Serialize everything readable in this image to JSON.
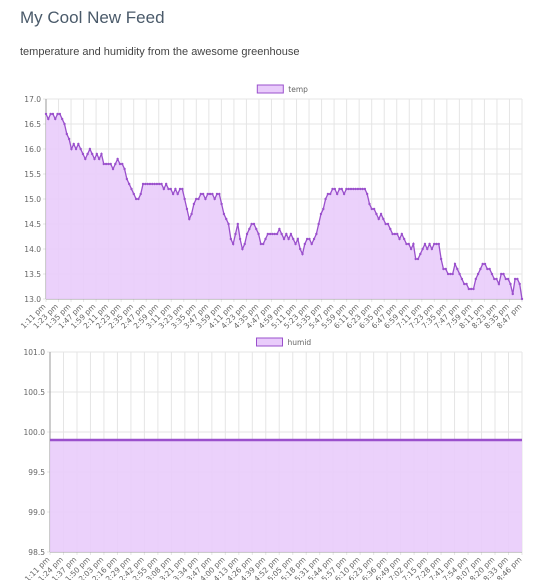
{
  "page": {
    "title": "My Cool New Feed",
    "description": "temperature and humidity from the awesome greenhouse"
  },
  "colors": {
    "line": "#9a50cc",
    "fill": "#e9ccfb",
    "grid": "#e5e5e5",
    "axis": "#999999"
  },
  "chart_data": [
    {
      "type": "area",
      "series": [
        {
          "name": "temp",
          "values": [
            16.7,
            16.6,
            16.7,
            16.7,
            16.6,
            16.7,
            16.7,
            16.6,
            16.5,
            16.3,
            16.2,
            16.0,
            16.1,
            16.0,
            16.1,
            16.0,
            15.9,
            15.8,
            15.9,
            16.0,
            15.9,
            15.8,
            15.9,
            15.8,
            15.9,
            15.7,
            15.7,
            15.7,
            15.7,
            15.6,
            15.7,
            15.8,
            15.7,
            15.7,
            15.6,
            15.4,
            15.3,
            15.2,
            15.1,
            15.0,
            15.0,
            15.1,
            15.3,
            15.3,
            15.3,
            15.3,
            15.3,
            15.3,
            15.3,
            15.3,
            15.3,
            15.2,
            15.3,
            15.2,
            15.2,
            15.1,
            15.2,
            15.1,
            15.2,
            15.2,
            15.0,
            14.8,
            14.6,
            14.7,
            14.9,
            15.0,
            15.0,
            15.1,
            15.1,
            15.0,
            15.1,
            15.1,
            15.1,
            15.0,
            15.1,
            15.1,
            14.9,
            14.7,
            14.6,
            14.5,
            14.2,
            14.1,
            14.3,
            14.5,
            14.2,
            14.0,
            14.1,
            14.3,
            14.4,
            14.5,
            14.5,
            14.4,
            14.3,
            14.1,
            14.1,
            14.2,
            14.3,
            14.3,
            14.3,
            14.3,
            14.3,
            14.4,
            14.3,
            14.2,
            14.3,
            14.2,
            14.3,
            14.2,
            14.1,
            14.2,
            14.0,
            13.9,
            14.1,
            14.2,
            14.2,
            14.1,
            14.2,
            14.3,
            14.5,
            14.7,
            14.8,
            15.0,
            15.1,
            15.1,
            15.2,
            15.2,
            15.1,
            15.2,
            15.2,
            15.1,
            15.2,
            15.2,
            15.2,
            15.2,
            15.2,
            15.2,
            15.2,
            15.2,
            15.2,
            15.1,
            14.9,
            14.8,
            14.8,
            14.7,
            14.6,
            14.7,
            14.6,
            14.5,
            14.5,
            14.4,
            14.3,
            14.3,
            14.3,
            14.2,
            14.3,
            14.2,
            14.1,
            14.1,
            14.0,
            14.1,
            13.8,
            13.8,
            13.9,
            14.0,
            14.1,
            14.0,
            14.1,
            14.0,
            14.1,
            14.1,
            14.1,
            13.8,
            13.6,
            13.6,
            13.5,
            13.5,
            13.5,
            13.7,
            13.6,
            13.5,
            13.4,
            13.3,
            13.3,
            13.2,
            13.2,
            13.2,
            13.4,
            13.5,
            13.6,
            13.7,
            13.7,
            13.6,
            13.6,
            13.5,
            13.4,
            13.4,
            13.3,
            13.5,
            13.5,
            13.4,
            13.4,
            13.3,
            13.1,
            13.4,
            13.4,
            13.3,
            13.0
          ]
        }
      ],
      "x_labels": [
        "1:11 pm",
        "1:23 pm",
        "1:35 pm",
        "1:47 pm",
        "1:59 pm",
        "2:11 pm",
        "2:23 pm",
        "2:35 pm",
        "2:47 pm",
        "2:59 pm",
        "3:11 pm",
        "3:23 pm",
        "3:35 pm",
        "3:47 pm",
        "3:59 pm",
        "4:11 pm",
        "4:23 pm",
        "4:35 pm",
        "4:47 pm",
        "4:59 pm",
        "5:11 pm",
        "5:23 pm",
        "5:35 pm",
        "5:47 pm",
        "5:59 pm",
        "6:11 pm",
        "6:23 pm",
        "6:35 pm",
        "6:47 pm",
        "6:59 pm",
        "7:11 pm",
        "7:23 pm",
        "7:35 pm",
        "7:47 pm",
        "7:59 pm",
        "8:11 pm",
        "8:23 pm",
        "8:35 pm",
        "8:47 pm"
      ],
      "y_ticks": [
        "17.0",
        "16.5",
        "16.0",
        "15.5",
        "15.0",
        "14.5",
        "14.0",
        "13.5",
        "13.0"
      ],
      "ylim": [
        13.0,
        17.0
      ],
      "legend": "top-center",
      "grid": true
    },
    {
      "type": "area",
      "series": [
        {
          "name": "humid",
          "values": [
            99.9,
            99.9
          ]
        }
      ],
      "x_labels": [
        "1:11 pm",
        "1:24 pm",
        "1:37 pm",
        "1:50 pm",
        "2:03 pm",
        "2:16 pm",
        "2:29 pm",
        "2:42 pm",
        "2:55 pm",
        "3:08 pm",
        "3:21 pm",
        "3:34 pm",
        "3:47 pm",
        "4:00 pm",
        "4:13 pm",
        "4:26 pm",
        "4:39 pm",
        "4:52 pm",
        "5:05 pm",
        "5:18 pm",
        "5:31 pm",
        "5:44 pm",
        "5:57 pm",
        "6:10 pm",
        "6:23 pm",
        "6:36 pm",
        "6:49 pm",
        "7:02 pm",
        "7:15 pm",
        "7:28 pm",
        "7:41 pm",
        "7:54 pm",
        "8:07 pm",
        "8:20 pm",
        "8:33 pm",
        "8:46 pm"
      ],
      "y_ticks": [
        "101.0",
        "100.5",
        "100.0",
        "99.5",
        "99.0",
        "98.5"
      ],
      "ylim": [
        98.5,
        101.0
      ],
      "legend": "top-center",
      "grid": true
    }
  ]
}
